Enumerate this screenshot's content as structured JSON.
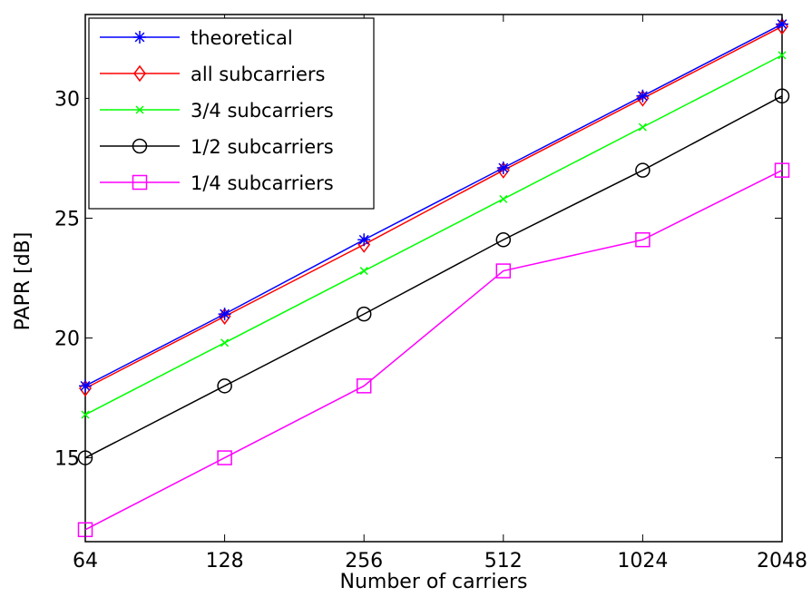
{
  "chart_data": {
    "type": "line",
    "title": "",
    "xlabel": "Number of carriers",
    "ylabel": "PAPR [dB]",
    "categories": [
      "64",
      "128",
      "256",
      "512",
      "1024",
      "2048"
    ],
    "ylim": [
      11.5,
      33.5
    ],
    "yticks": [
      15,
      20,
      25,
      30
    ],
    "grid": false,
    "legend_position": "top-left",
    "series": [
      {
        "name": "theoretical",
        "color": "#0000ff",
        "marker": "star",
        "values": [
          18.0,
          21.0,
          24.1,
          27.1,
          30.1,
          33.1
        ]
      },
      {
        "name": "all subcarriers",
        "color": "#ff0000",
        "marker": "diamond",
        "values": [
          17.9,
          20.9,
          23.9,
          27.0,
          30.0,
          33.0
        ]
      },
      {
        "name": "3/4 subcarriers",
        "color": "#00ff00",
        "marker": "x",
        "values": [
          16.8,
          19.8,
          22.8,
          25.8,
          28.8,
          31.8
        ]
      },
      {
        "name": "1/2 subcarriers",
        "color": "#000000",
        "marker": "circle",
        "values": [
          15.0,
          18.0,
          21.0,
          24.1,
          27.0,
          30.1
        ]
      },
      {
        "name": "1/4 subcarriers",
        "color": "#ff00ff",
        "marker": "square",
        "values": [
          12.0,
          15.0,
          18.0,
          22.8,
          24.1,
          27.0
        ]
      }
    ]
  }
}
